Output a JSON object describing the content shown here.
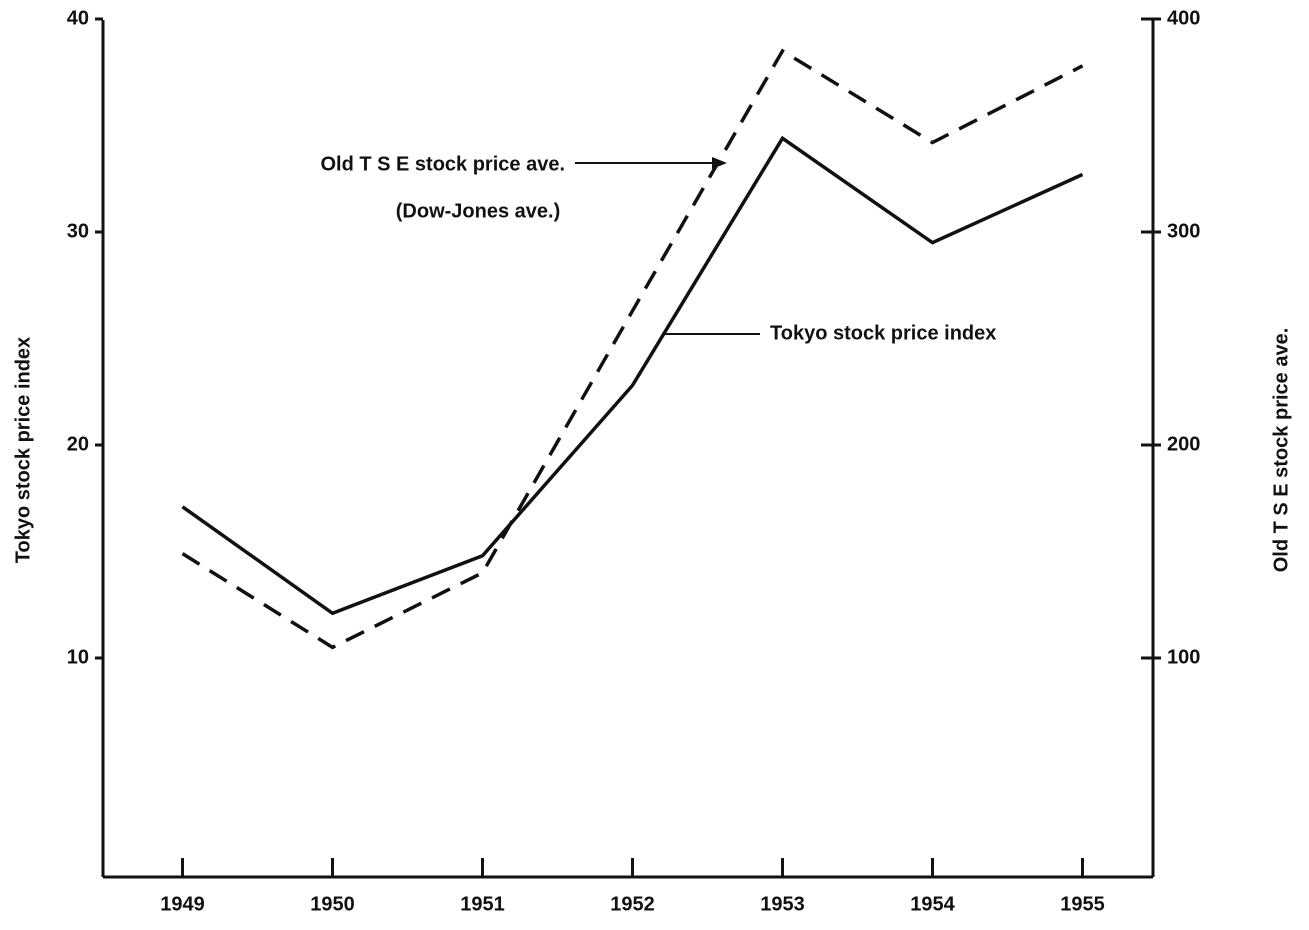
{
  "chart_data": {
    "type": "line",
    "x": [
      1949,
      1950,
      1951,
      1952,
      1953,
      1954,
      1955
    ],
    "xlim": [
      1948.47,
      1955.47
    ],
    "xticks": [
      1949,
      1950,
      1951,
      1952,
      1953,
      1954,
      1955
    ],
    "y_label": "Tokyo stock price index",
    "y2_label": "Old T S E stock price ave.",
    "ylim": [
      0,
      40
    ],
    "yticks": [
      10,
      20,
      30,
      40
    ],
    "y2lim": [
      0,
      400
    ],
    "y2ticks": [
      100,
      200,
      300,
      400
    ],
    "series": [
      {
        "name": "Tokyo stock price index",
        "color": "#111111",
        "dashed": false,
        "values": [
          17.1,
          12.1,
          14.8,
          22.8,
          34.4,
          29.5,
          32.7
        ]
      },
      {
        "name": "Old T S E stock price ave.",
        "color": "#111111",
        "dashed": true,
        "axis": "y2",
        "values": [
          149,
          105,
          140,
          263,
          385,
          342,
          378
        ]
      }
    ],
    "annotations": [
      "(Dow-Jones ave.)"
    ]
  }
}
